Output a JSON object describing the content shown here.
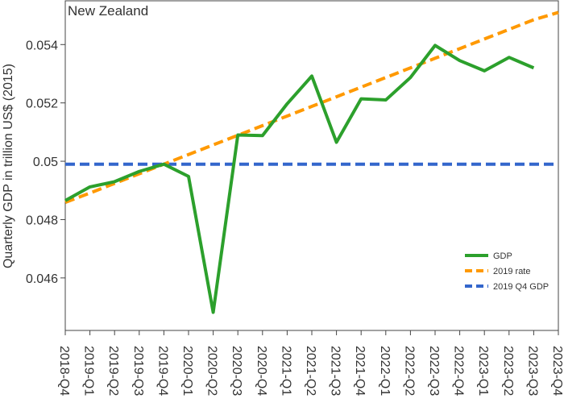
{
  "chart_data": {
    "type": "line",
    "title": "New Zealand",
    "ylabel": "Quarterly GDP in trillion US$ (2015)",
    "xlabel": "",
    "categories": [
      "2018-Q4",
      "2019-Q1",
      "2019-Q2",
      "2019-Q3",
      "2019-Q4",
      "2020-Q1",
      "2020-Q2",
      "2020-Q3",
      "2020-Q4",
      "2021-Q1",
      "2021-Q2",
      "2021-Q3",
      "2021-Q4",
      "2022-Q1",
      "2022-Q2",
      "2022-Q3",
      "2022-Q4",
      "2023-Q1",
      "2023-Q2",
      "2023-Q3",
      "2023-Q4"
    ],
    "ylim": [
      0.0442,
      0.0555
    ],
    "yticks": [
      0.046,
      0.048,
      0.05,
      0.052,
      0.054
    ],
    "ytick_labels": [
      "0.046",
      "0.048",
      "0.05",
      "0.052",
      "0.054"
    ],
    "grid": false,
    "legend_position": "bottom-right",
    "series": [
      {
        "name": "GDP",
        "color": "#2ca02c",
        "dash": "solid",
        "values": [
          0.04865,
          0.04912,
          0.0493,
          0.04965,
          0.0499,
          0.04948,
          0.04482,
          0.0509,
          0.05088,
          0.05197,
          0.05292,
          0.05065,
          0.05214,
          0.0521,
          0.05287,
          0.05397,
          0.05345,
          0.0531,
          0.05356,
          0.0532,
          null
        ]
      },
      {
        "name": "2019 rate",
        "color": "#ff9900",
        "dash": "dashed",
        "values": [
          0.04859,
          0.04891,
          0.04924,
          0.04957,
          0.0499,
          0.05023,
          0.05056,
          0.05089,
          0.05122,
          0.05155,
          0.05188,
          0.05221,
          0.05254,
          0.05287,
          0.0532,
          0.05353,
          0.05386,
          0.05419,
          0.05452,
          0.05485,
          0.0551
        ]
      },
      {
        "name": "2019 Q4 GDP",
        "color": "#3366cc",
        "dash": "dashed",
        "values": [
          0.0499,
          0.0499,
          0.0499,
          0.0499,
          0.0499,
          0.0499,
          0.0499,
          0.0499,
          0.0499,
          0.0499,
          0.0499,
          0.0499,
          0.0499,
          0.0499,
          0.0499,
          0.0499,
          0.0499,
          0.0499,
          0.0499,
          0.0499,
          0.0499
        ]
      }
    ]
  }
}
